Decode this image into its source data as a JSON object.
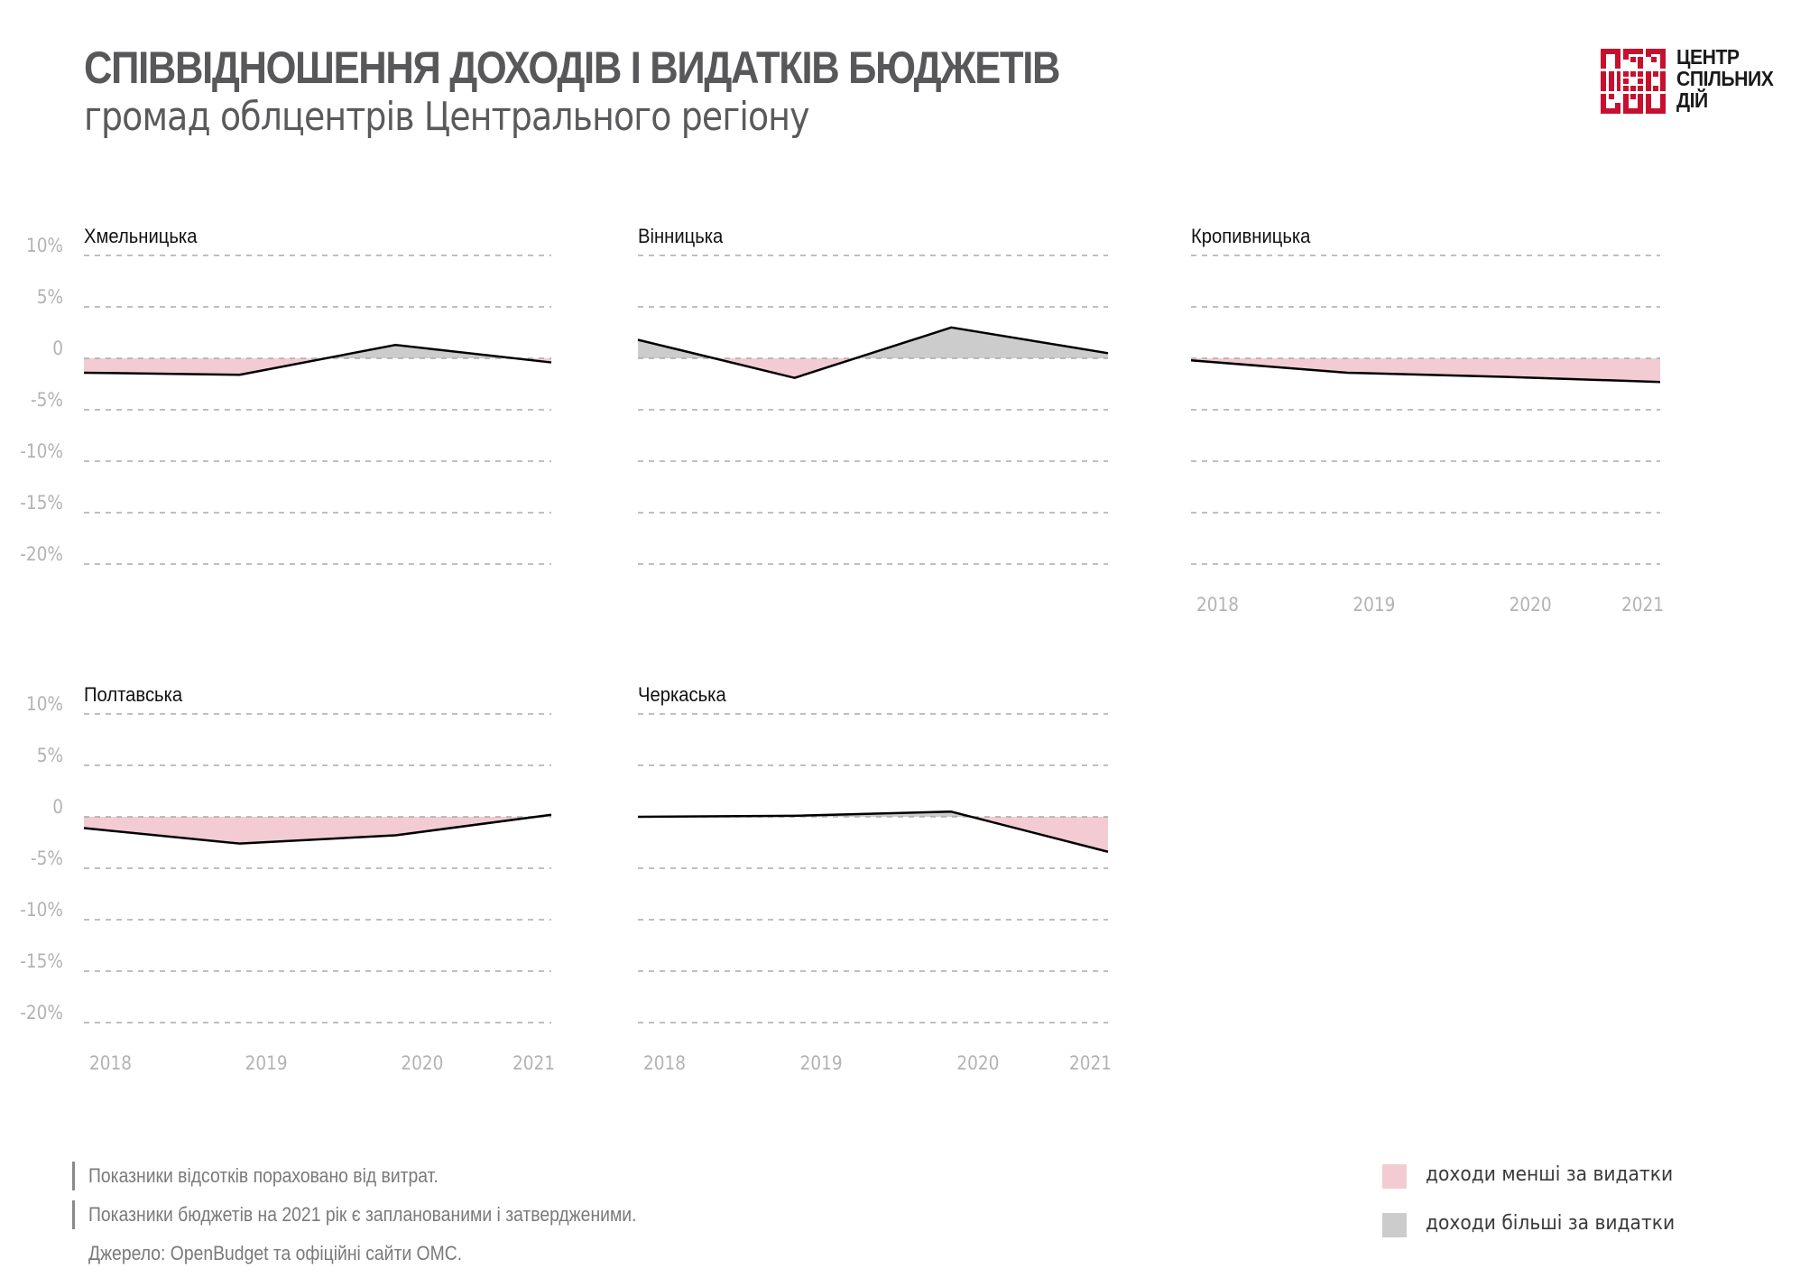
{
  "header": {
    "title": "СПІВВІДНОШЕННЯ ДОХОДІВ І ВИДАТКІВ БЮДЖЕТІВ",
    "subtitle": "громад облцентрів Центрального регіону"
  },
  "logo": {
    "lines": [
      "ЦЕНТР",
      "СПІЛЬНИХ",
      "ДІЙ"
    ],
    "color": "#c8102e"
  },
  "colors": {
    "deficit": "#f2ccd2",
    "surplus": "#cccccc",
    "line": "#000000",
    "grid": "#aaaaaa",
    "axis_text": "#b3b3b3"
  },
  "chart_data": [
    {
      "type": "area",
      "title": "Хмельницька",
      "categories": [
        "2018",
        "2019",
        "2020",
        "2021"
      ],
      "values": [
        -1.4,
        -1.6,
        1.3,
        -0.4
      ],
      "ylim": [
        -20,
        10
      ],
      "yticks": [
        10,
        5,
        0,
        -5,
        -10,
        -15,
        -20
      ],
      "ytick_labels": [
        "10%",
        "5%",
        "0",
        "-5%",
        "-10%",
        "-15%",
        "-20%"
      ],
      "show_yticks": true,
      "show_xticks": false,
      "grid": true
    },
    {
      "type": "area",
      "title": "Вінницька",
      "categories": [
        "2018",
        "2019",
        "2020",
        "2021"
      ],
      "values": [
        1.8,
        -1.9,
        3.0,
        0.5
      ],
      "ylim": [
        -20,
        10
      ],
      "yticks": [
        10,
        5,
        0,
        -5,
        -10,
        -15,
        -20
      ],
      "ytick_labels": [
        "10%",
        "5%",
        "0",
        "-5%",
        "-10%",
        "-15%",
        "-20%"
      ],
      "show_yticks": false,
      "show_xticks": false,
      "grid": true
    },
    {
      "type": "area",
      "title": "Кропивницька",
      "categories": [
        "2018",
        "2019",
        "2020",
        "2021"
      ],
      "values": [
        -0.2,
        -1.4,
        -1.8,
        -2.3
      ],
      "ylim": [
        -20,
        10
      ],
      "yticks": [
        10,
        5,
        0,
        -5,
        -10,
        -15,
        -20
      ],
      "ytick_labels": [
        "10%",
        "5%",
        "0",
        "-5%",
        "-10%",
        "-15%",
        "-20%"
      ],
      "show_yticks": false,
      "show_xticks": true,
      "grid": true
    },
    {
      "type": "area",
      "title": "Полтавська",
      "categories": [
        "2018",
        "2019",
        "2020",
        "2021"
      ],
      "values": [
        -1.1,
        -2.6,
        -1.8,
        0.2
      ],
      "ylim": [
        -20,
        10
      ],
      "yticks": [
        10,
        5,
        0,
        -5,
        -10,
        -15,
        -20
      ],
      "ytick_labels": [
        "10%",
        "5%",
        "0",
        "-5%",
        "-10%",
        "-15%",
        "-20%"
      ],
      "show_yticks": true,
      "show_xticks": true,
      "grid": true
    },
    {
      "type": "area",
      "title": "Черкаська",
      "categories": [
        "2018",
        "2019",
        "2020",
        "2021"
      ],
      "values": [
        0.0,
        0.1,
        0.5,
        -3.4
      ],
      "ylim": [
        -20,
        10
      ],
      "yticks": [
        10,
        5,
        0,
        -5,
        -10,
        -15,
        -20
      ],
      "ytick_labels": [
        "10%",
        "5%",
        "0",
        "-5%",
        "-10%",
        "-15%",
        "-20%"
      ],
      "show_yticks": false,
      "show_xticks": true,
      "grid": true
    }
  ],
  "footer": {
    "notes": [
      "Показники відсотків пораховано від витрат.",
      "Показники бюджетів на 2021 рік є запланованими і затвердженими."
    ],
    "source": "Джерело: OpenBudget та офіційні сайти ОМС."
  },
  "legend": {
    "position": "bottom-right",
    "items": [
      {
        "label": "доходи менші за видатки",
        "color": "#f2ccd2"
      },
      {
        "label": "доходи більші за видатки",
        "color": "#cccccc"
      }
    ]
  }
}
